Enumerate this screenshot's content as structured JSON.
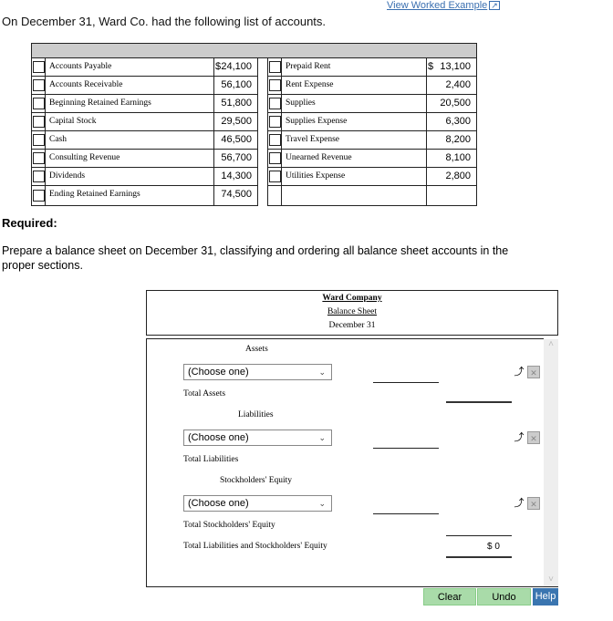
{
  "link": "View Worked Example",
  "intro": "On December 31, Ward Co. had the following list of accounts.",
  "accounts_left": [
    {
      "name": "Accounts Payable",
      "value": "24,100",
      "currency": "$"
    },
    {
      "name": "Accounts Receivable",
      "value": "56,100"
    },
    {
      "name": "Beginning Retained Earnings",
      "value": "51,800"
    },
    {
      "name": "Capital Stock",
      "value": "29,500"
    },
    {
      "name": "Cash",
      "value": "46,500"
    },
    {
      "name": "Consulting Revenue",
      "value": "56,700"
    },
    {
      "name": "Dividends",
      "value": "14,300"
    },
    {
      "name": "Ending Retained Earnings",
      "value": "74,500"
    }
  ],
  "accounts_right": [
    {
      "name": "Prepaid Rent",
      "value": "13,100",
      "currency": "$"
    },
    {
      "name": "Rent Expense",
      "value": "2,400"
    },
    {
      "name": "Supplies",
      "value": "20,500"
    },
    {
      "name": "Supplies Expense",
      "value": "6,300"
    },
    {
      "name": "Travel Expense",
      "value": "8,200"
    },
    {
      "name": "Unearned Revenue",
      "value": "8,100"
    },
    {
      "name": "Utilities Expense",
      "value": "2,800"
    },
    {
      "name": "",
      "value": ""
    }
  ],
  "required": "Required:",
  "prepare": "Prepare a balance sheet on December 31, classifying and ordering all balance sheet accounts in the proper sections.",
  "sheet": {
    "company": "Ward Company",
    "title": "Balance Sheet",
    "date": "December 31"
  },
  "sections": {
    "assets": "Assets",
    "total_assets": "Total Assets",
    "liabilities": "Liabilities",
    "total_liabilities": "Total Liabilities",
    "equity": "Stockholders' Equity",
    "total_equity": "Total Stockholders' Equity",
    "total_le": "Total Liabilities and Stockholders' Equity",
    "total_le_value": "$ 0"
  },
  "select_value": "(Choose one)",
  "buttons": {
    "clear": "Clear",
    "undo": "Undo",
    "help": "Help"
  }
}
